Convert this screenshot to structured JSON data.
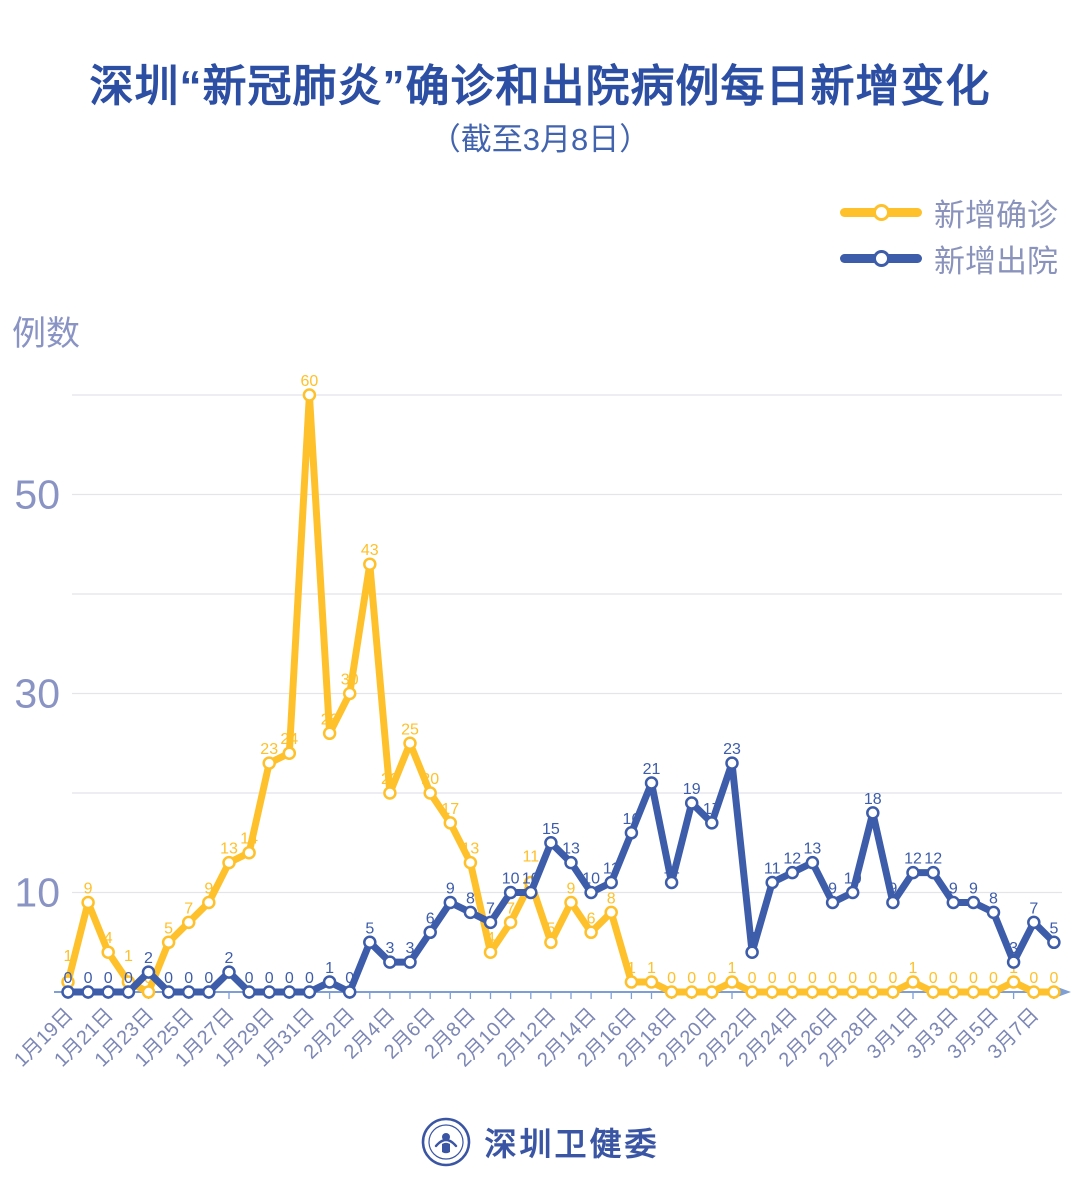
{
  "title": "深圳“新冠肺炎”确诊和出院病例每日新增变化",
  "subtitle": "（截至3月8日）",
  "y_axis_title": "例数",
  "legend": {
    "items": [
      {
        "label": "新增确诊",
        "series": "confirmed"
      },
      {
        "label": "新增出院",
        "series": "discharged"
      }
    ]
  },
  "footer": {
    "brand": "深圳卫健委",
    "logo": "shenzhen-health-commission-emblem"
  },
  "colors": {
    "confirmed": "#FFC12B",
    "discharged": "#3D5CAA",
    "title_text": "#2C4EA3",
    "subtitle_text": "#4263AE",
    "legend_text": "#8A93BB",
    "axis_text": "#7C87B5",
    "y_tick_text": "#8A94C4",
    "grid_line": "#E4E4E9",
    "axis_line": "#7E9FD6",
    "footer_text": "#3A55A4",
    "background": "#FFFFFF"
  },
  "chart_data": {
    "type": "line",
    "title": "深圳“新冠肺炎”确诊和出院病例每日新增变化（截至3月8日）",
    "ylabel": "例数",
    "ylim": [
      0,
      62
    ],
    "yticks_labeled": [
      10,
      30,
      50
    ],
    "gridlines_y": [
      10,
      20,
      30,
      40,
      50,
      60
    ],
    "grid": "horizontal",
    "legend_position": "top-right",
    "markers": "open-circle",
    "point_labels": "all",
    "x_tick_label_step": 2,
    "x": [
      "1月19日",
      "1月20日",
      "1月21日",
      "1月22日",
      "1月23日",
      "1月24日",
      "1月25日",
      "1月26日",
      "1月27日",
      "1月28日",
      "1月29日",
      "1月30日",
      "1月31日",
      "2月1日",
      "2月2日",
      "2月3日",
      "2月4日",
      "2月5日",
      "2月6日",
      "2月7日",
      "2月8日",
      "2月9日",
      "2月10日",
      "2月11日",
      "2月12日",
      "2月13日",
      "2月14日",
      "2月15日",
      "2月16日",
      "2月17日",
      "2月18日",
      "2月19日",
      "2月20日",
      "2月21日",
      "2月22日",
      "2月23日",
      "2月24日",
      "2月25日",
      "2月26日",
      "2月27日",
      "2月28日",
      "2月29日",
      "3月1日",
      "3月2日",
      "3月3日",
      "3月4日",
      "3月5日",
      "3月6日",
      "3月7日",
      "3月8日"
    ],
    "series": [
      {
        "name": "新增确诊",
        "color": "#FFC12B",
        "values": [
          1,
          9,
          4,
          1,
          0,
          5,
          7,
          9,
          13,
          14,
          23,
          24,
          60,
          26,
          30,
          43,
          20,
          25,
          20,
          17,
          13,
          4,
          7,
          11,
          5,
          9,
          6,
          8,
          1,
          1,
          0,
          0,
          0,
          1,
          0,
          0,
          0,
          0,
          0,
          0,
          0,
          0,
          1,
          0,
          0,
          0,
          0,
          1,
          0,
          0
        ]
      },
      {
        "name": "新增出院",
        "color": "#3D5CAA",
        "values": [
          0,
          0,
          0,
          0,
          2,
          0,
          0,
          0,
          2,
          0,
          0,
          0,
          0,
          1,
          0,
          5,
          3,
          3,
          6,
          9,
          8,
          7,
          10,
          10,
          15,
          13,
          10,
          11,
          16,
          21,
          11,
          19,
          17,
          23,
          4,
          11,
          12,
          13,
          9,
          10,
          18,
          9,
          12,
          12,
          9,
          9,
          8,
          3,
          7,
          5
        ]
      }
    ]
  }
}
